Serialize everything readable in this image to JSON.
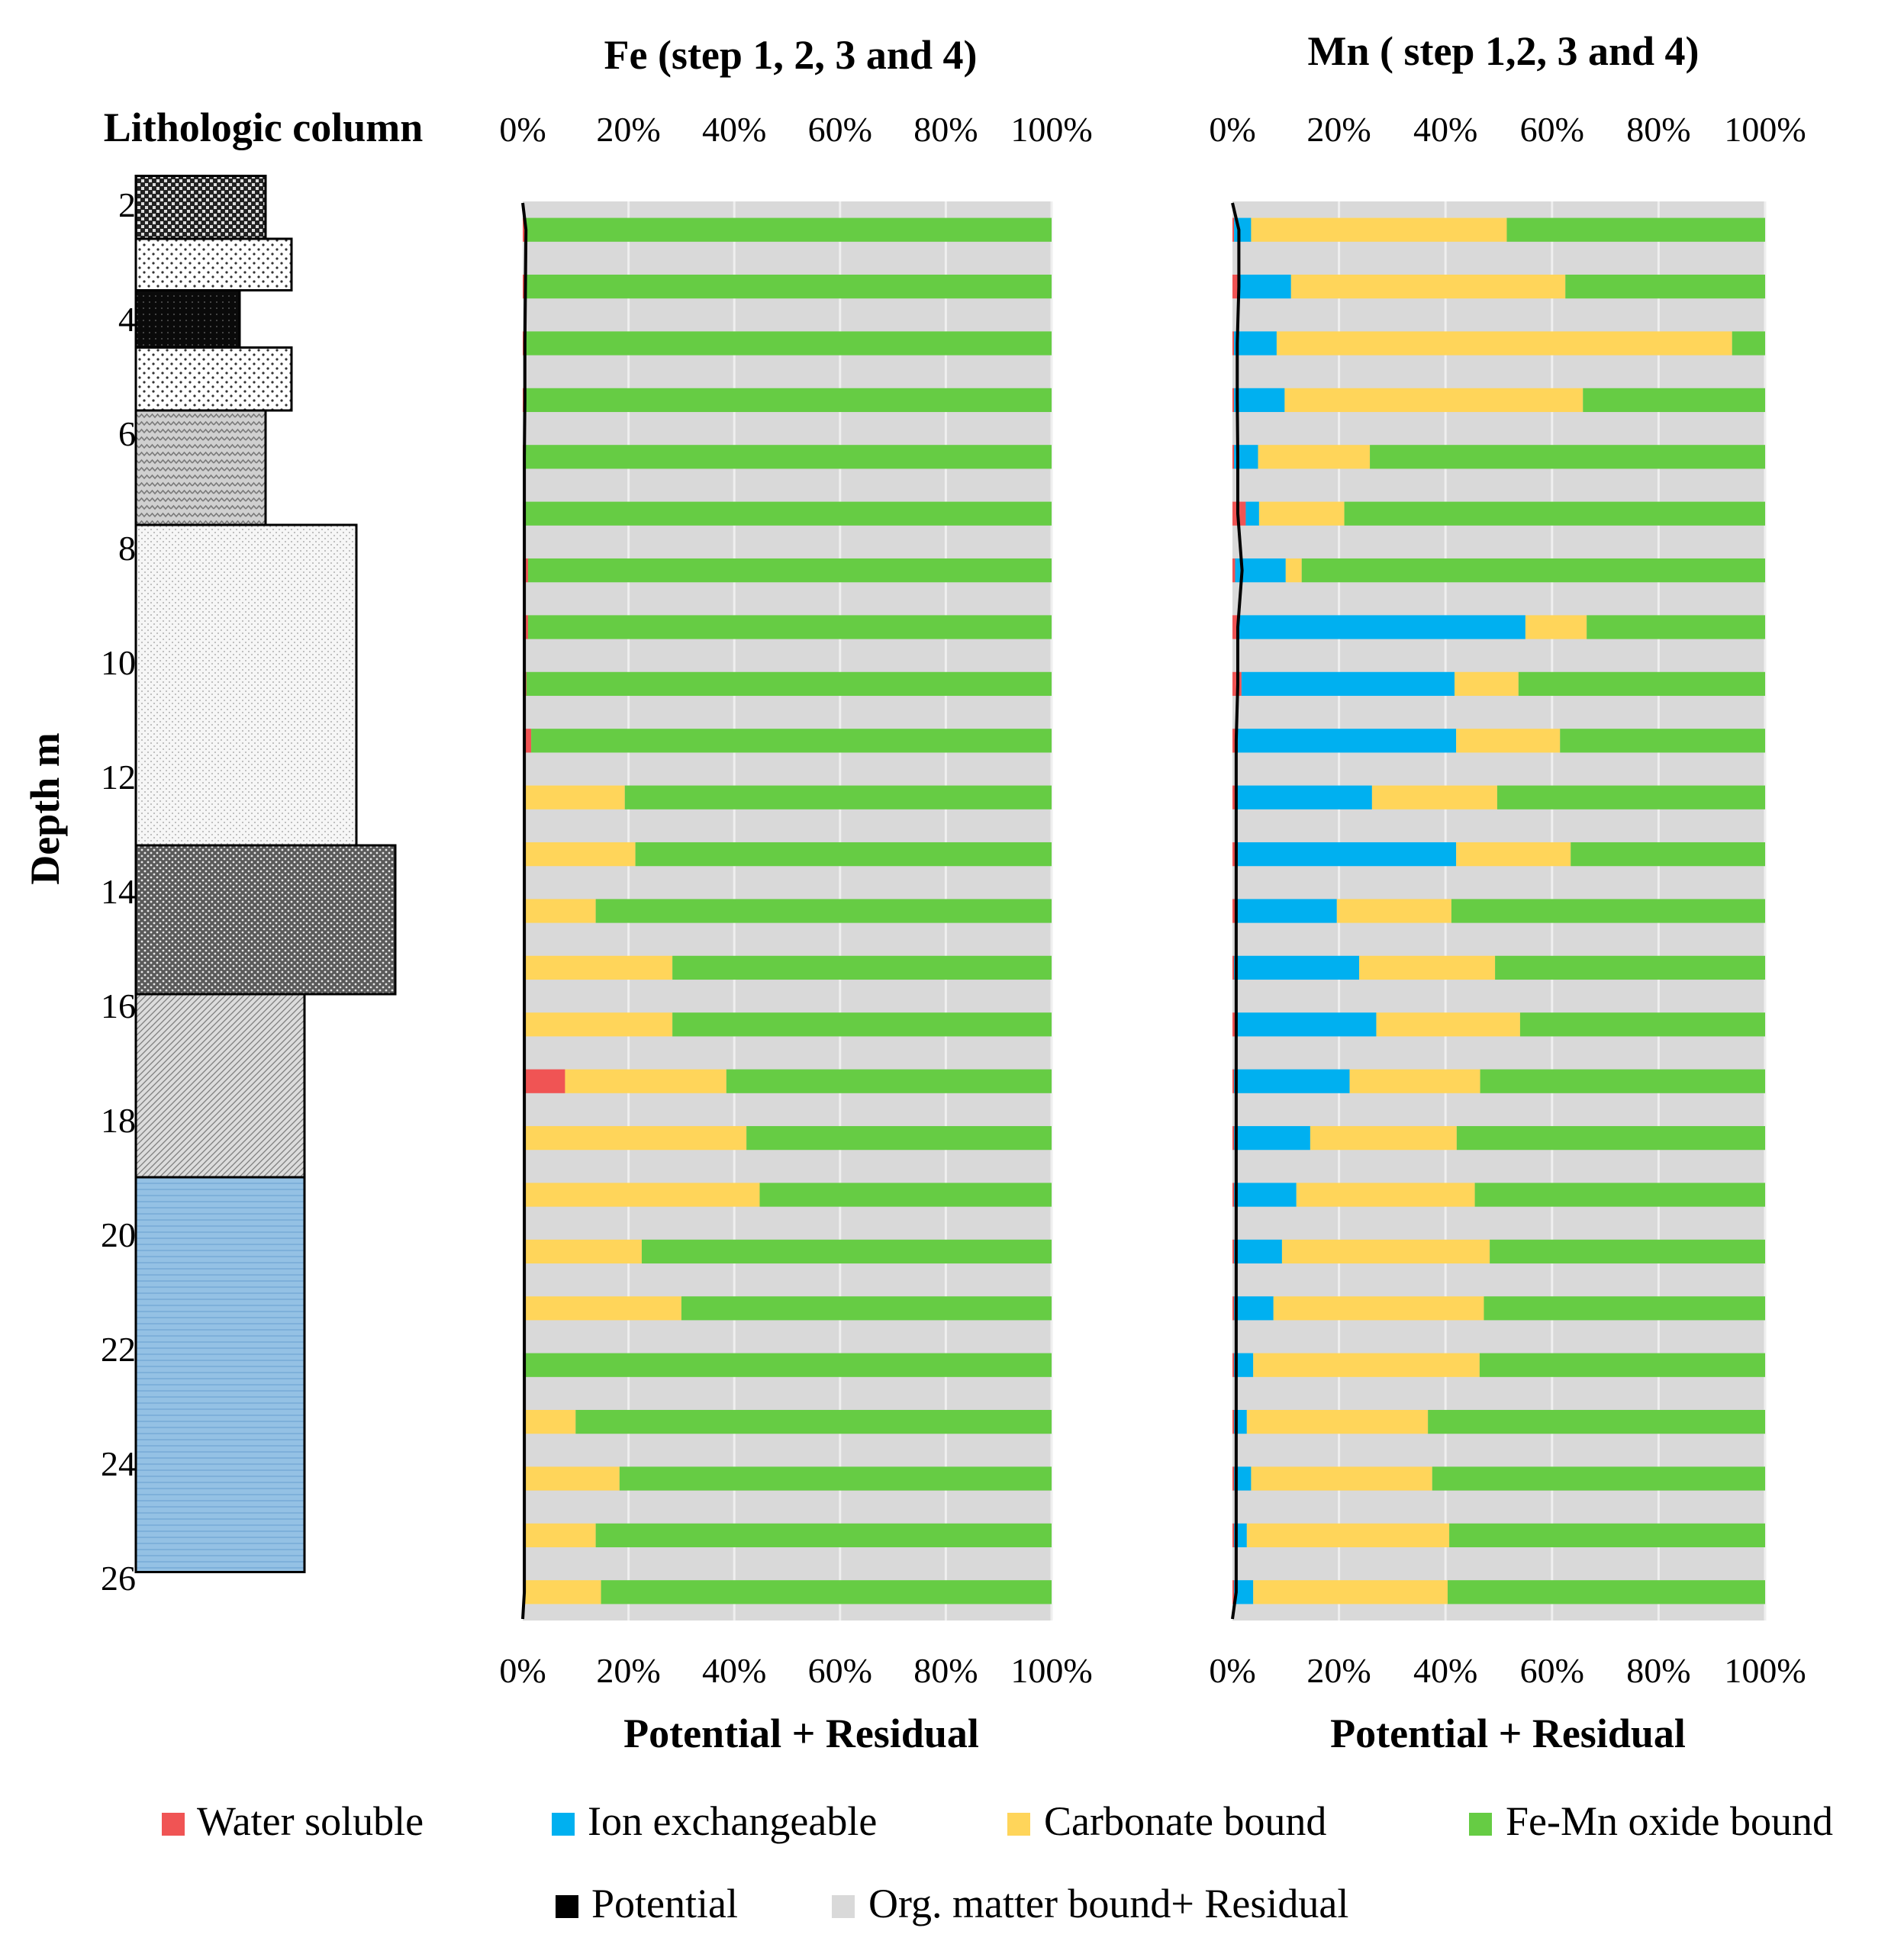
{
  "chart_data": [
    {
      "type": "table",
      "title": "Lithologic column",
      "ylabel": "Depth m",
      "ylim": [
        0,
        27
      ],
      "depth_ticks": [
        "2",
        "4",
        "6",
        "8",
        "10",
        "12",
        "14",
        "16",
        "18",
        "20",
        "22",
        "24",
        "26"
      ],
      "layers": [
        {
          "top": 1.5,
          "bottom": 2.6,
          "extent": 1.0,
          "fill": "checker-dark"
        },
        {
          "top": 2.6,
          "bottom": 3.5,
          "extent": 1.2,
          "fill": "dots-light"
        },
        {
          "top": 3.5,
          "bottom": 4.5,
          "extent": 0.8,
          "fill": "solid-dark"
        },
        {
          "top": 4.5,
          "bottom": 5.6,
          "extent": 1.2,
          "fill": "dots-light"
        },
        {
          "top": 5.6,
          "bottom": 7.6,
          "extent": 1.0,
          "fill": "zigzag"
        },
        {
          "top": 7.6,
          "bottom": 13.2,
          "extent": 1.7,
          "fill": "fine-dots"
        },
        {
          "top": 13.2,
          "bottom": 15.8,
          "extent": 2.0,
          "fill": "dense-dots"
        },
        {
          "top": 15.8,
          "bottom": 19.0,
          "extent": 1.3,
          "fill": "diagonal"
        },
        {
          "top": 19.0,
          "bottom": 25.9,
          "extent": 1.3,
          "fill": "water-blue"
        }
      ]
    },
    {
      "type": "bar",
      "title": "Fe (step 1, 2, 3 and 4)",
      "xlabel": "Potential + Residual",
      "xlim": [
        0,
        100
      ],
      "x_ticks": [
        "0%",
        "20%",
        "40%",
        "60%",
        "80%",
        "100%"
      ],
      "series_names": [
        "Water soluble",
        "Ion exchangeable",
        "Carbonate bound",
        "Fe-Mn oxide bound"
      ],
      "rows": [
        [
          0.3,
          0,
          0.2,
          99.5
        ],
        [
          0.5,
          0,
          0,
          99.5
        ],
        [
          0.5,
          0,
          0,
          99.5
        ],
        [
          0.5,
          0,
          0,
          99.5
        ],
        [
          0.5,
          0,
          0,
          99.5
        ],
        [
          0.5,
          0,
          0,
          99.5
        ],
        [
          1.0,
          0,
          0,
          99.0
        ],
        [
          1.0,
          0,
          0,
          99.0
        ],
        [
          0.7,
          0,
          0,
          99.3
        ],
        [
          1.6,
          0,
          0,
          98.4
        ],
        [
          0.3,
          0,
          19.0,
          80.7
        ],
        [
          0.3,
          0,
          21.0,
          78.7
        ],
        [
          0.3,
          0,
          13.5,
          86.2
        ],
        [
          0.3,
          0,
          28.0,
          71.7
        ],
        [
          0.3,
          0,
          28.0,
          71.7
        ],
        [
          8.0,
          0,
          30.5,
          61.5
        ],
        [
          0.3,
          0,
          42.0,
          57.7
        ],
        [
          0.3,
          0,
          44.5,
          55.2
        ],
        [
          0,
          0,
          22.5,
          77.5
        ],
        [
          0,
          0,
          30.0,
          70.0
        ],
        [
          0,
          0,
          0,
          100
        ],
        [
          0.3,
          0,
          9.7,
          90.0
        ],
        [
          0.3,
          0,
          18.0,
          81.7
        ],
        [
          0.3,
          0,
          13.5,
          86.2
        ],
        [
          0.3,
          0,
          14.5,
          85.2
        ]
      ],
      "potential": [
        0.6,
        0.5,
        0.4,
        0.4,
        0.3,
        0.3,
        0.3,
        0.3,
        0.3,
        0.3,
        0.3,
        0.3,
        0.3,
        0.3,
        0.3,
        0.3,
        0.3,
        0.3,
        0.3,
        0.3,
        0.3,
        0.3,
        0.3,
        0.3,
        0.3
      ]
    },
    {
      "type": "bar",
      "title": "Mn ( step 1,2, 3 and 4)",
      "xlabel": "Potential + Residual",
      "xlim": [
        0,
        100
      ],
      "x_ticks": [
        "0%",
        "20%",
        "40%",
        "60%",
        "80%",
        "100%"
      ],
      "series_names": [
        "Water soluble",
        "Ion exchangeable",
        "Carbonate bound",
        "Fe-Mn oxide bound"
      ],
      "rows": [
        [
          0.3,
          3.2,
          48.0,
          48.5
        ],
        [
          1.0,
          10.0,
          51.5,
          37.5
        ],
        [
          0.3,
          8.0,
          85.5,
          6.2
        ],
        [
          0.3,
          9.5,
          56.0,
          34.2
        ],
        [
          0.3,
          4.5,
          21.0,
          74.2
        ],
        [
          2.5,
          2.5,
          16.0,
          79.0
        ],
        [
          0.5,
          9.5,
          3.0,
          87.0
        ],
        [
          1.2,
          53.8,
          11.5,
          33.5
        ],
        [
          1.7,
          40.0,
          12.0,
          46.3
        ],
        [
          1.0,
          41.0,
          19.5,
          38.5
        ],
        [
          0.6,
          25.6,
          23.5,
          50.3
        ],
        [
          1.0,
          41.0,
          21.5,
          36.5
        ],
        [
          0.6,
          19.0,
          21.5,
          58.9
        ],
        [
          0.3,
          23.5,
          25.5,
          50.7
        ],
        [
          0.5,
          26.5,
          27.0,
          46.0
        ],
        [
          0.3,
          21.7,
          24.5,
          53.5
        ],
        [
          0.3,
          14.3,
          27.5,
          57.9
        ],
        [
          0.3,
          11.7,
          33.5,
          54.5
        ],
        [
          0.3,
          9.0,
          39.0,
          51.7
        ],
        [
          0.3,
          7.4,
          39.5,
          52.8
        ],
        [
          0.3,
          3.6,
          42.5,
          53.6
        ],
        [
          0.3,
          2.4,
          34.0,
          63.3
        ],
        [
          0.3,
          3.2,
          34.0,
          62.5
        ],
        [
          0.3,
          2.4,
          38.0,
          59.3
        ],
        [
          0.3,
          3.6,
          36.5,
          59.6
        ]
      ],
      "potential": [
        1.2,
        1.2,
        0.9,
        0.9,
        1.0,
        1.0,
        1.8,
        1.0,
        1.0,
        0.7,
        0.7,
        0.7,
        0.7,
        0.7,
        0.7,
        0.7,
        0.7,
        0.7,
        0.7,
        0.7,
        0.7,
        0.7,
        0.7,
        0.7,
        0.7
      ]
    }
  ],
  "legend": [
    {
      "label": "Water soluble",
      "color": "#f05454"
    },
    {
      "label": "Ion exchangeable",
      "color": "#00b0f0"
    },
    {
      "label": "Carbonate bound",
      "color": "#ffd55a"
    },
    {
      "label": "Fe-Mn oxide bound",
      "color": "#66cc44"
    },
    {
      "label": "Potential",
      "color": "#000000"
    },
    {
      "label": "Org. matter bound+ Residual",
      "color": "#d9d9d9"
    }
  ]
}
